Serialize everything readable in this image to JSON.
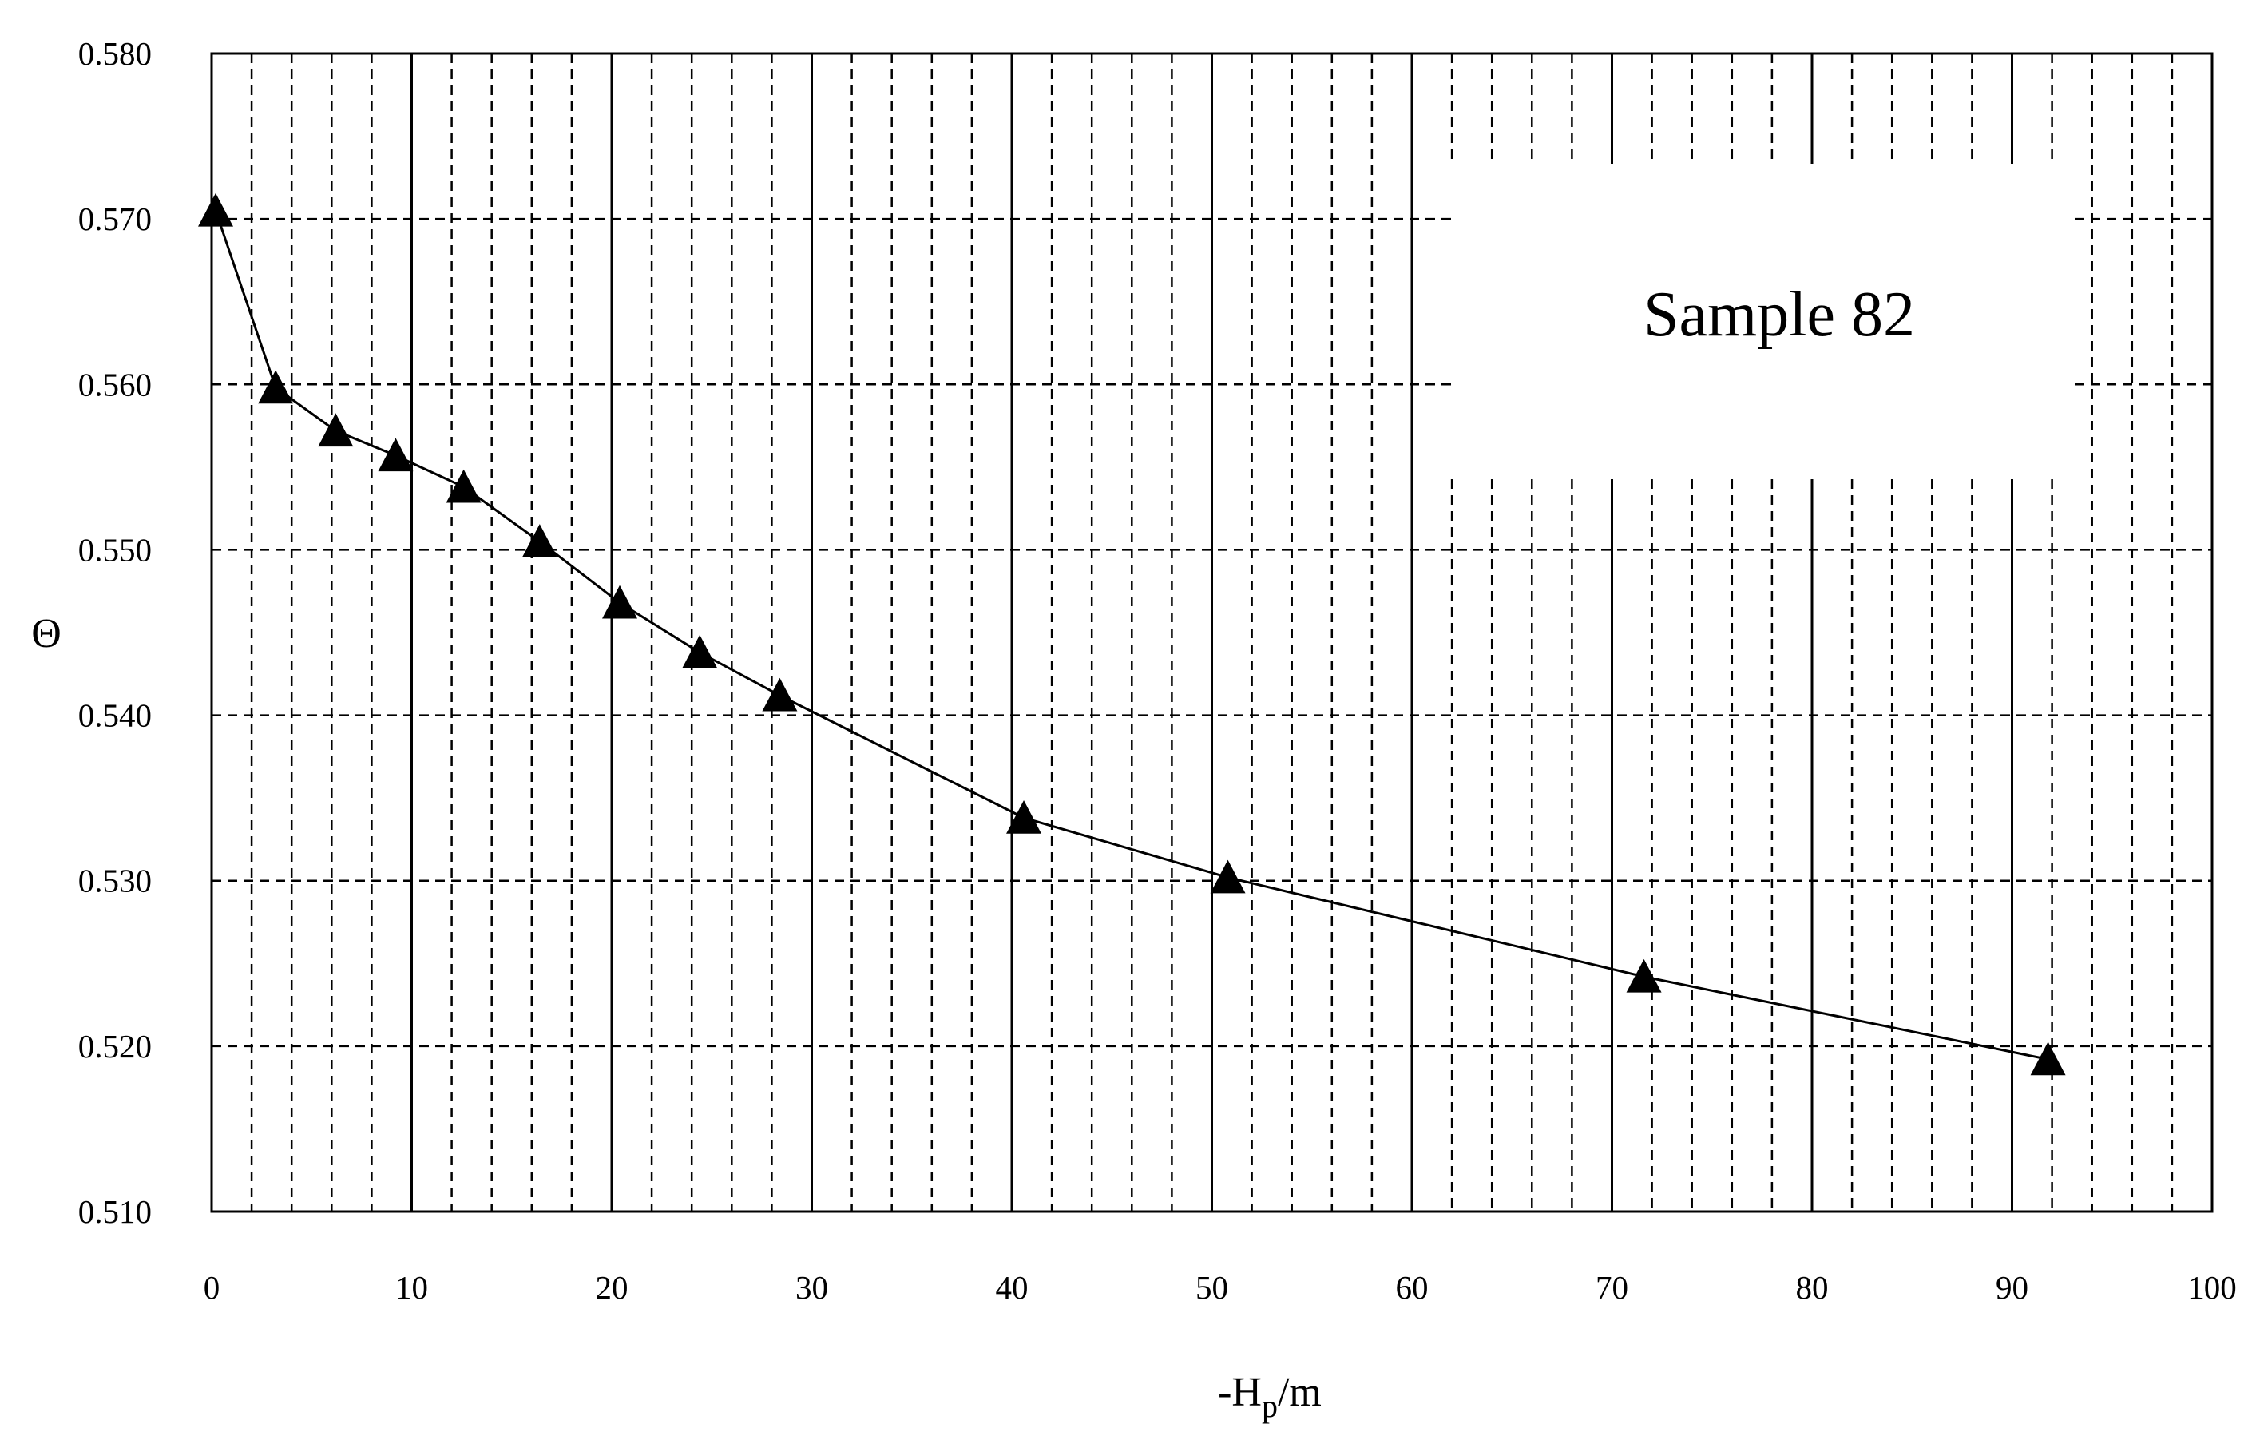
{
  "chart_data": {
    "type": "line",
    "title": "",
    "annotation": "Sample 82",
    "xlabel_main": "-H",
    "xlabel_sub": "p",
    "xlabel_tail": "/m",
    "ylabel": "Θ",
    "xlim": [
      0,
      100
    ],
    "ylim": [
      0.51,
      0.58
    ],
    "x_ticks": [
      "0",
      "10",
      "20",
      "30",
      "40",
      "50",
      "60",
      "70",
      "80",
      "90",
      "100"
    ],
    "y_ticks": [
      "0.510",
      "0.520",
      "0.530",
      "0.540",
      "0.550",
      "0.560",
      "0.570",
      "0.580"
    ],
    "grid": true,
    "marker": "triangle",
    "line_color": "#000000",
    "series": [
      {
        "x": [
          0.2,
          3.2,
          6.2,
          9.2,
          12.6,
          16.4,
          20.4,
          24.4,
          28.4,
          40.6,
          50.8,
          71.6,
          91.8
        ],
        "y": [
          0.5705,
          0.5598,
          0.5572,
          0.5557,
          0.5538,
          0.5505,
          0.5468,
          0.5438,
          0.5412,
          0.5338,
          0.5302,
          0.5242,
          0.5192
        ]
      }
    ]
  }
}
